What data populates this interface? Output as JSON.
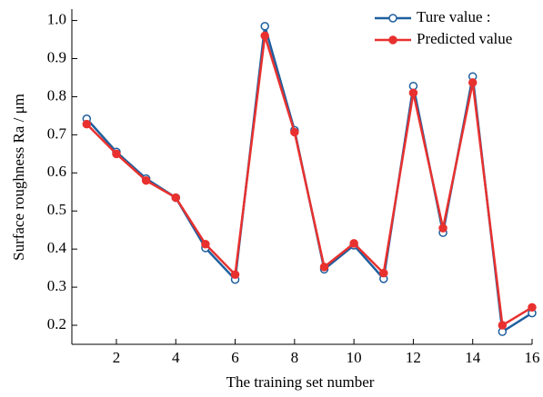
{
  "chart_data": {
    "type": "line",
    "x_label": "The training set number",
    "y_label": "Surface roughness Ra / μm",
    "x": [
      1,
      2,
      3,
      4,
      5,
      6,
      7,
      8,
      9,
      10,
      11,
      12,
      13,
      14,
      15,
      16
    ],
    "series": [
      {
        "name": "Ture value :",
        "color": "#1f5f9e",
        "marker": "open",
        "values": [
          0.742,
          0.655,
          0.585,
          0.535,
          0.403,
          0.32,
          0.985,
          0.712,
          0.347,
          0.41,
          0.322,
          0.828,
          0.443,
          0.853,
          0.183,
          0.232
        ]
      },
      {
        "name": "Predicted value",
        "color": "#e8312f",
        "marker": "filled",
        "values": [
          0.728,
          0.65,
          0.58,
          0.535,
          0.413,
          0.333,
          0.96,
          0.707,
          0.353,
          0.415,
          0.337,
          0.81,
          0.455,
          0.837,
          0.2,
          0.247
        ]
      }
    ],
    "xlim": [
      0.5,
      16
    ],
    "xticks": [
      2,
      4,
      6,
      8,
      10,
      12,
      14,
      16
    ],
    "ylim": [
      0.15,
      1.03
    ],
    "yticks": [
      0.2,
      0.3,
      0.4,
      0.5,
      0.6,
      0.7,
      0.8,
      0.9,
      {
        "value": 1.0,
        "label": "1.0"
      }
    ],
    "legend": "upper right"
  }
}
